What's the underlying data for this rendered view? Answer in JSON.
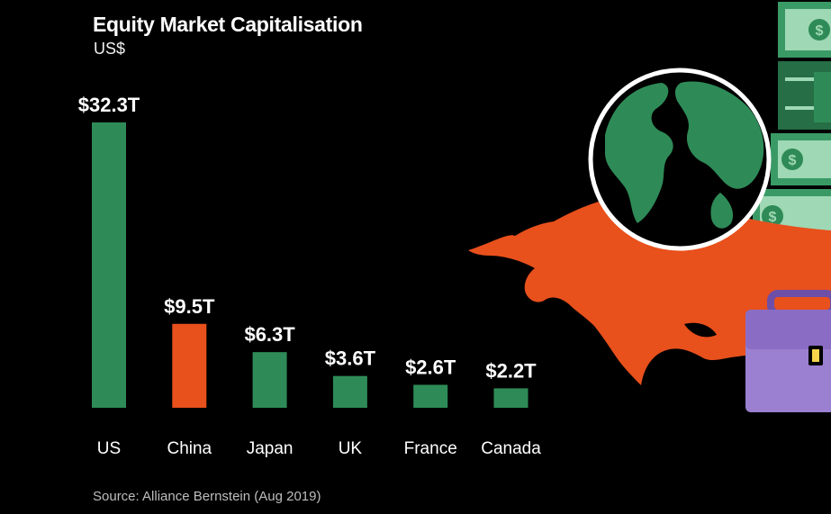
{
  "header": {
    "title": "Equity Market Capitalisation",
    "subtitle": "US$"
  },
  "footer": {
    "source": "Source: Alliance Bernstein (Aug 2019)"
  },
  "chart_data": {
    "type": "bar",
    "title": "Equity Market Capitalisation",
    "ylabel": "US$",
    "categories": [
      "US",
      "China",
      "Japan",
      "UK",
      "France",
      "Canada"
    ],
    "values": [
      32.3,
      9.5,
      6.3,
      3.6,
      2.6,
      2.2
    ],
    "value_labels": [
      "$32.3T",
      "$9.5T",
      "$6.3T",
      "$3.6T",
      "$2.6T",
      "$2.2T"
    ],
    "bar_colors": [
      "#2e8b57",
      "#e8501c",
      "#2e8b57",
      "#2e8b57",
      "#2e8b57",
      "#2e8b57"
    ],
    "ylim": [
      0,
      32.3
    ],
    "grid": false,
    "legend": "none"
  },
  "colors": {
    "background": "#000000",
    "green": "#2e8b57",
    "orange": "#e8501c",
    "purple": "#9b7fd0"
  },
  "illustration": {
    "icons": [
      "bull-icon",
      "globe-icon",
      "money-stack-icon",
      "briefcase-icon"
    ]
  }
}
